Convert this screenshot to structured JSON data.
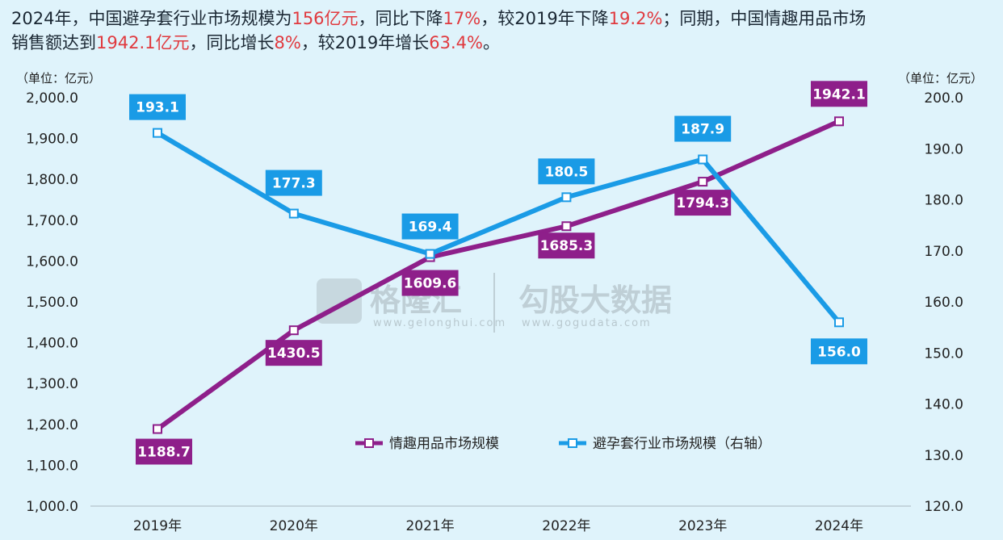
{
  "headline": {
    "line1_segments": [
      {
        "text": "2024年，中国避孕套行业市场规模为",
        "highlight": false
      },
      {
        "text": "156亿元",
        "highlight": true
      },
      {
        "text": "，同比下降",
        "highlight": false
      },
      {
        "text": "17%",
        "highlight": true
      },
      {
        "text": "，较2019年下降",
        "highlight": false
      },
      {
        "text": "19.2%",
        "highlight": true
      },
      {
        "text": "；同期，中国情趣用品市场",
        "highlight": false
      }
    ],
    "line2_segments": [
      {
        "text": "销售额达到",
        "highlight": false
      },
      {
        "text": "1942.1亿元",
        "highlight": true
      },
      {
        "text": "，同比增长",
        "highlight": false
      },
      {
        "text": "8%",
        "highlight": true
      },
      {
        "text": "，较2019年增长",
        "highlight": false
      },
      {
        "text": "63.4%",
        "highlight": true
      },
      {
        "text": "。",
        "highlight": false
      }
    ]
  },
  "watermark": {
    "brand1": "格隆汇",
    "brand1_url": "www.gelonghui.com",
    "brand2": "勾股大数据",
    "brand2_url": "www.gogudata.com"
  },
  "chart_data": {
    "type": "line",
    "categories": [
      "2019年",
      "2020年",
      "2021年",
      "2022年",
      "2023年",
      "2024年"
    ],
    "y_left_unit": "（单位：亿元）",
    "y_right_unit": "（单位：亿元）",
    "y_left_ticks": [
      "2,000.0",
      "1,900.0",
      "1,800.0",
      "1,700.0",
      "1,600.0",
      "1,500.0",
      "1,400.0",
      "1,300.0",
      "1,200.0",
      "1,100.0",
      "1,000.0"
    ],
    "y_right_ticks": [
      "200.0",
      "190.0",
      "180.0",
      "170.0",
      "160.0",
      "150.0",
      "140.0",
      "130.0",
      "120.0"
    ],
    "y_left_lim": [
      1000,
      2000
    ],
    "y_right_lim": [
      120,
      200
    ],
    "grid": false,
    "legend_position": "bottom-center",
    "series": [
      {
        "name": "情趣用品市场规模",
        "axis": "left",
        "color": "#8e1f8a",
        "values": [
          1188.7,
          1430.5,
          1609.6,
          1685.3,
          1794.3,
          1942.1
        ],
        "labels": [
          "1188.7",
          "1430.5",
          "1609.6",
          "1685.3",
          "1794.3",
          "1942.1"
        ]
      },
      {
        "name": "避孕套行业市场规模（右轴）",
        "axis": "right",
        "color": "#1a9be6",
        "values": [
          193.1,
          177.3,
          169.4,
          180.5,
          187.9,
          156.0
        ],
        "labels": [
          "193.1",
          "177.3",
          "169.4",
          "180.5",
          "187.9",
          "156.0"
        ]
      }
    ]
  }
}
